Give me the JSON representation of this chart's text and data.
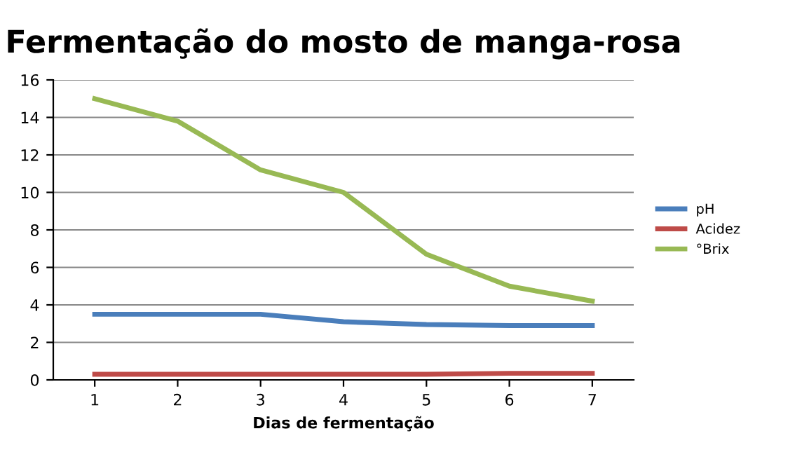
{
  "chart_data": {
    "type": "line",
    "title": "Fermentação do mosto de manga-rosa",
    "xlabel": "Dias de fermentação",
    "categories": [
      "1",
      "2",
      "3",
      "4",
      "5",
      "6",
      "7"
    ],
    "series": [
      {
        "name": "pH",
        "color": "#4a7ebb",
        "values": [
          3.5,
          3.5,
          3.5,
          3.1,
          2.95,
          2.9,
          2.9
        ]
      },
      {
        "name": "Acidez",
        "color": "#be4b48",
        "values": [
          0.3,
          0.3,
          0.3,
          0.3,
          0.3,
          0.35,
          0.35
        ]
      },
      {
        "name": "°Brix",
        "color": "#98b954",
        "values": [
          15,
          13.8,
          11.2,
          10,
          6.7,
          5,
          4.2
        ]
      }
    ],
    "ylim": [
      0,
      16
    ],
    "yticks": [
      0,
      2,
      4,
      6,
      8,
      10,
      12,
      14,
      16
    ],
    "grid": "y",
    "legend": "right",
    "marker": "none",
    "line_style": "solid"
  }
}
